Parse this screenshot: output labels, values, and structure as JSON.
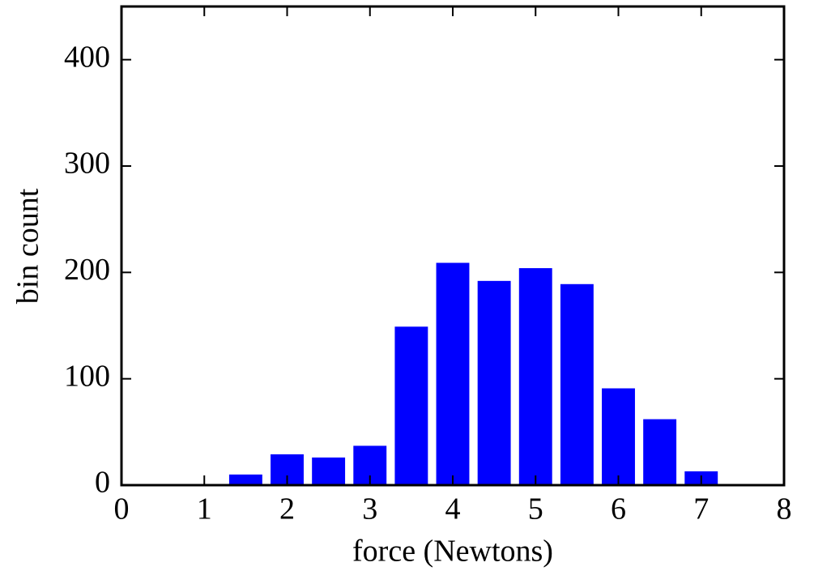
{
  "chart_data": {
    "type": "bar",
    "xlabel": "force (Newtons)",
    "ylabel": "bin count",
    "x": [
      1.5,
      2,
      2.5,
      3,
      3.5,
      4,
      4.5,
      5,
      5.5,
      6,
      6.5,
      7
    ],
    "values": [
      10,
      29,
      26,
      37,
      149,
      209,
      192,
      204,
      189,
      91,
      62,
      13
    ],
    "color": "#0000ff",
    "xlim": [
      0,
      8
    ],
    "xticks": [
      0,
      1,
      2,
      3,
      4,
      5,
      6,
      7,
      8
    ],
    "ylim": [
      0,
      450
    ],
    "yticks": [
      0,
      100,
      200,
      300,
      400
    ]
  }
}
